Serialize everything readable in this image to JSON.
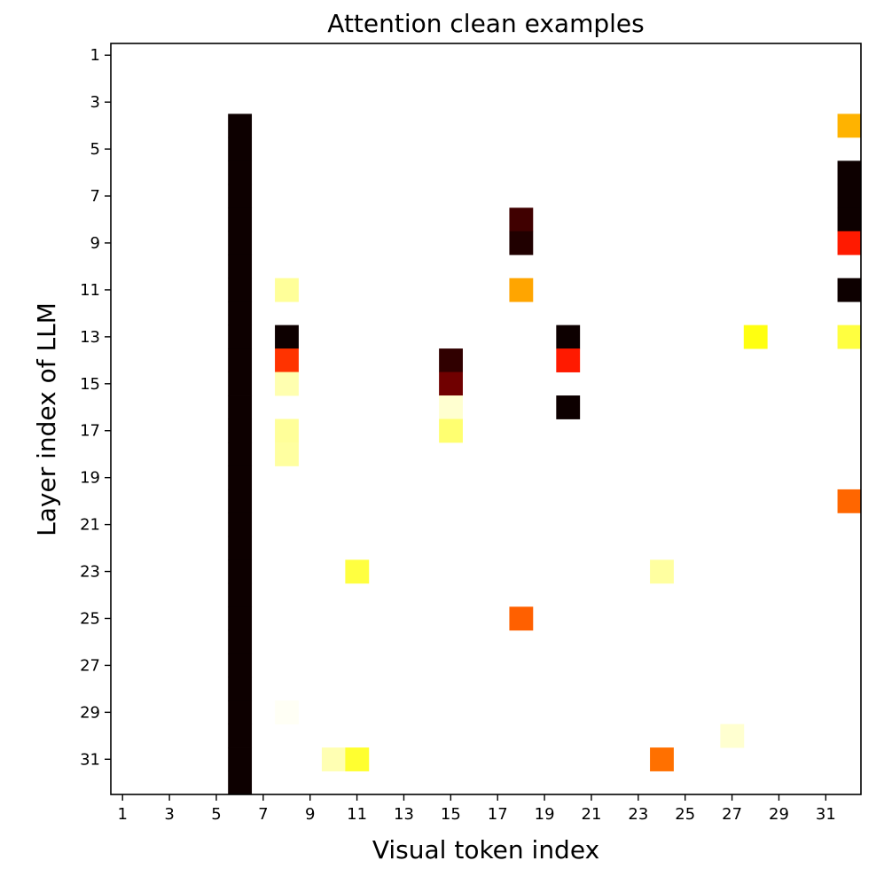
{
  "chart_data": {
    "type": "heatmap",
    "title": "Attention clean examples",
    "xlabel": "Visual token index",
    "ylabel": "Layer index of LLM",
    "x_range": [
      1,
      32
    ],
    "y_range": [
      1,
      32
    ],
    "y_inverted": true,
    "x_ticks": [
      1,
      3,
      5,
      7,
      9,
      11,
      13,
      15,
      17,
      19,
      21,
      23,
      25,
      27,
      29,
      31
    ],
    "y_ticks": [
      1,
      3,
      5,
      7,
      9,
      11,
      13,
      15,
      17,
      19,
      21,
      23,
      25,
      27,
      29,
      31
    ],
    "grid": false,
    "colormap": "hot (reversed: white = low, black = high)",
    "cells": [
      {
        "x": 6,
        "y": 4,
        "color": "#0d0000"
      },
      {
        "x": 6,
        "y": 5,
        "color": "#0d0000"
      },
      {
        "x": 6,
        "y": 6,
        "color": "#0d0000"
      },
      {
        "x": 6,
        "y": 7,
        "color": "#0d0000"
      },
      {
        "x": 6,
        "y": 8,
        "color": "#0d0000"
      },
      {
        "x": 6,
        "y": 9,
        "color": "#0d0000"
      },
      {
        "x": 6,
        "y": 10,
        "color": "#0d0000"
      },
      {
        "x": 6,
        "y": 11,
        "color": "#0d0000"
      },
      {
        "x": 6,
        "y": 12,
        "color": "#0d0000"
      },
      {
        "x": 6,
        "y": 13,
        "color": "#0d0000"
      },
      {
        "x": 6,
        "y": 14,
        "color": "#0d0000"
      },
      {
        "x": 6,
        "y": 15,
        "color": "#0d0000"
      },
      {
        "x": 6,
        "y": 16,
        "color": "#0d0000"
      },
      {
        "x": 6,
        "y": 17,
        "color": "#0d0000"
      },
      {
        "x": 6,
        "y": 18,
        "color": "#0d0000"
      },
      {
        "x": 6,
        "y": 19,
        "color": "#0d0000"
      },
      {
        "x": 6,
        "y": 20,
        "color": "#0d0000"
      },
      {
        "x": 6,
        "y": 21,
        "color": "#0d0000"
      },
      {
        "x": 6,
        "y": 22,
        "color": "#0d0000"
      },
      {
        "x": 6,
        "y": 23,
        "color": "#0d0000"
      },
      {
        "x": 6,
        "y": 24,
        "color": "#0d0000"
      },
      {
        "x": 6,
        "y": 25,
        "color": "#0d0000"
      },
      {
        "x": 6,
        "y": 26,
        "color": "#0d0000"
      },
      {
        "x": 6,
        "y": 27,
        "color": "#0d0000"
      },
      {
        "x": 6,
        "y": 28,
        "color": "#0d0000"
      },
      {
        "x": 6,
        "y": 29,
        "color": "#0d0000"
      },
      {
        "x": 6,
        "y": 30,
        "color": "#0d0000"
      },
      {
        "x": 6,
        "y": 31,
        "color": "#0d0000"
      },
      {
        "x": 6,
        "y": 32,
        "color": "#0d0000"
      },
      {
        "x": 8,
        "y": 11,
        "color": "#ffff99"
      },
      {
        "x": 8,
        "y": 13,
        "color": "#0d0000"
      },
      {
        "x": 8,
        "y": 14,
        "color": "#ff3300"
      },
      {
        "x": 8,
        "y": 15,
        "color": "#ffffb0"
      },
      {
        "x": 8,
        "y": 17,
        "color": "#ffff99"
      },
      {
        "x": 8,
        "y": 18,
        "color": "#ffffa0"
      },
      {
        "x": 8,
        "y": 29,
        "color": "#fffff5"
      },
      {
        "x": 10,
        "y": 31,
        "color": "#ffffb3"
      },
      {
        "x": 11,
        "y": 23,
        "color": "#ffff40"
      },
      {
        "x": 11,
        "y": 31,
        "color": "#ffff30"
      },
      {
        "x": 15,
        "y": 14,
        "color": "#300000"
      },
      {
        "x": 15,
        "y": 15,
        "color": "#700000"
      },
      {
        "x": 15,
        "y": 16,
        "color": "#ffffd0"
      },
      {
        "x": 15,
        "y": 17,
        "color": "#ffff70"
      },
      {
        "x": 18,
        "y": 8,
        "color": "#400000"
      },
      {
        "x": 18,
        "y": 9,
        "color": "#200000"
      },
      {
        "x": 18,
        "y": 11,
        "color": "#ffa500"
      },
      {
        "x": 18,
        "y": 25,
        "color": "#ff6000"
      },
      {
        "x": 20,
        "y": 13,
        "color": "#0d0000"
      },
      {
        "x": 20,
        "y": 14,
        "color": "#ff1a00"
      },
      {
        "x": 20,
        "y": 16,
        "color": "#0d0000"
      },
      {
        "x": 24,
        "y": 23,
        "color": "#ffffa0"
      },
      {
        "x": 24,
        "y": 31,
        "color": "#ff7000"
      },
      {
        "x": 27,
        "y": 30,
        "color": "#ffffd0"
      },
      {
        "x": 28,
        "y": 13,
        "color": "#ffff10"
      },
      {
        "x": 32,
        "y": 4,
        "color": "#ffb300"
      },
      {
        "x": 32,
        "y": 6,
        "color": "#0d0000"
      },
      {
        "x": 32,
        "y": 7,
        "color": "#0d0000"
      },
      {
        "x": 32,
        "y": 8,
        "color": "#0d0000"
      },
      {
        "x": 32,
        "y": 9,
        "color": "#ff1a00"
      },
      {
        "x": 32,
        "y": 11,
        "color": "#0d0000"
      },
      {
        "x": 32,
        "y": 13,
        "color": "#ffff40"
      },
      {
        "x": 32,
        "y": 20,
        "color": "#ff6600"
      }
    ]
  }
}
